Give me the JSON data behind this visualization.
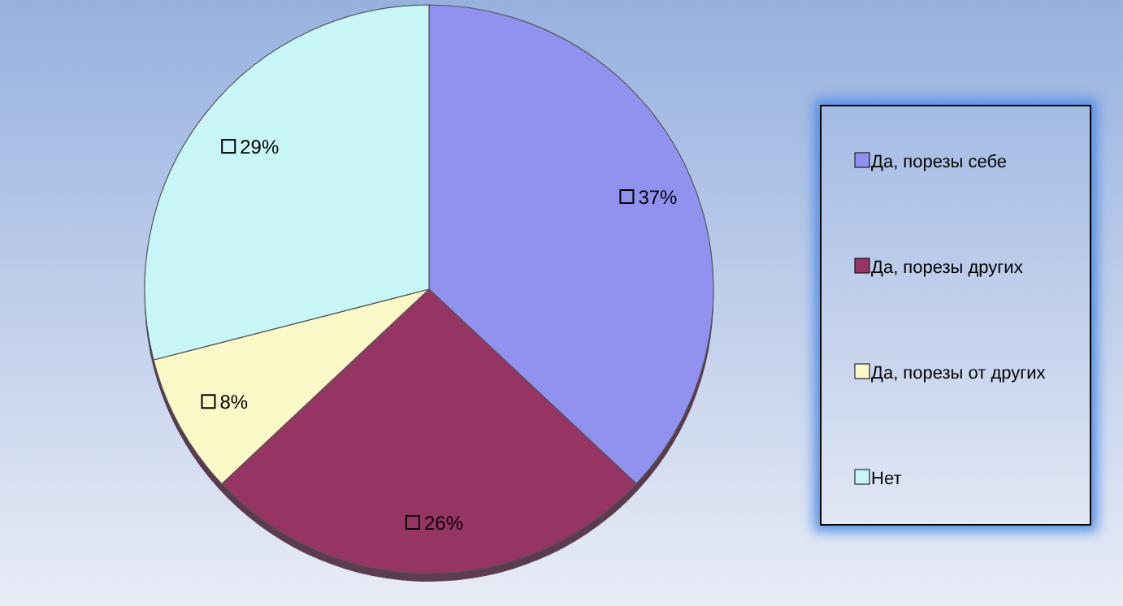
{
  "chart_data": {
    "type": "pie",
    "categories": [
      "Да, порезы себе",
      "Да, порезы других",
      "Да, порезы от других",
      "Нет"
    ],
    "values": [
      37,
      26,
      8,
      29
    ],
    "colors": [
      "#9191f0",
      "#963463",
      "#fbf8c8",
      "#c8f6f6"
    ],
    "value_labels": [
      "37%",
      "26%",
      "8%",
      "29%"
    ],
    "legend": "right"
  }
}
